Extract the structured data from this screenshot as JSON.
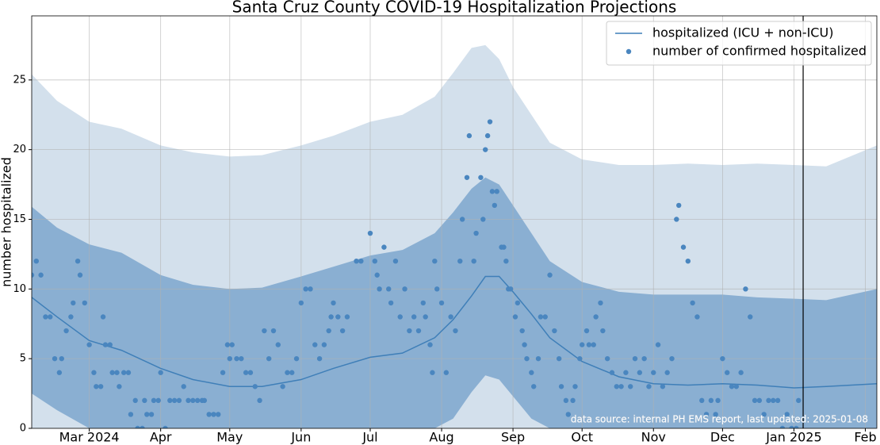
{
  "chart_data": {
    "type": "line",
    "title": "Santa Cruz County COVID-19 Hospitalization Projections",
    "ylabel": "number hospitalized",
    "annotation": "data source: internal PH EMS report, last updated: 2025-01-08",
    "xlim": [
      -25,
      342
    ],
    "ylim": [
      0,
      29.6
    ],
    "xticks": [
      {
        "value": 0,
        "label": "Mar 2024"
      },
      {
        "value": 31,
        "label": "Apr"
      },
      {
        "value": 61,
        "label": "May"
      },
      {
        "value": 92,
        "label": "Jun"
      },
      {
        "value": 122,
        "label": "Jul"
      },
      {
        "value": 153,
        "label": "Aug"
      },
      {
        "value": 184,
        "label": "Sep"
      },
      {
        "value": 214,
        "label": "Oct"
      },
      {
        "value": 245,
        "label": "Nov"
      },
      {
        "value": 275,
        "label": "Dec"
      },
      {
        "value": 306,
        "label": "Jan 2025"
      },
      {
        "value": 337,
        "label": "Feb"
      }
    ],
    "yticks": [
      0,
      5,
      10,
      15,
      20,
      25
    ],
    "grid": true,
    "legend": "upper right",
    "vline": 310,
    "bands": [
      {
        "color": "#d3e0ec",
        "x": [
          -25,
          -14,
          0,
          14,
          31,
          45,
          61,
          75,
          92,
          106,
          122,
          136,
          150,
          158,
          166,
          172,
          178,
          184,
          192,
          200,
          214,
          230,
          245,
          260,
          275,
          290,
          306,
          320,
          342
        ],
        "upper": [
          25.4,
          23.5,
          22.0,
          21.5,
          20.3,
          19.8,
          19.5,
          19.6,
          20.3,
          21.0,
          22.0,
          22.5,
          23.8,
          25.5,
          27.3,
          27.5,
          26.5,
          24.5,
          22.5,
          20.5,
          19.3,
          18.9,
          18.9,
          19.0,
          18.9,
          19.0,
          18.9,
          18.8,
          20.3
        ]
      },
      {
        "color": "#8aafd2",
        "x": [
          -25,
          -14,
          0,
          14,
          31,
          45,
          61,
          75,
          92,
          106,
          122,
          136,
          150,
          158,
          166,
          172,
          178,
          184,
          192,
          200,
          214,
          230,
          245,
          260,
          275,
          290,
          306,
          320,
          342
        ],
        "lower": [
          2.5,
          1.3,
          0,
          0,
          0,
          0,
          0,
          0,
          0,
          0,
          0,
          0,
          0,
          0.7,
          2.6,
          3.8,
          3.5,
          2.3,
          0.7,
          0,
          0,
          0,
          0,
          0,
          0,
          0,
          0,
          0,
          0
        ],
        "upper": [
          15.9,
          14.4,
          13.2,
          12.6,
          11.0,
          10.3,
          10.0,
          10.1,
          10.9,
          11.6,
          12.4,
          12.8,
          14.0,
          15.5,
          17.2,
          18.0,
          17.5,
          16.0,
          14.0,
          12.0,
          10.5,
          9.8,
          9.6,
          9.6,
          9.6,
          9.4,
          9.3,
          9.2,
          10.0
        ]
      }
    ],
    "series": [
      {
        "name": "hospitalized (ICU + non-ICU)",
        "color": "#3f7fb8",
        "type": "line",
        "x": [
          -25,
          -14,
          0,
          14,
          31,
          45,
          61,
          75,
          92,
          106,
          122,
          136,
          150,
          158,
          166,
          172,
          178,
          184,
          192,
          200,
          214,
          230,
          245,
          260,
          275,
          290,
          306,
          320,
          342
        ],
        "values": [
          9.4,
          8.0,
          6.3,
          5.6,
          4.3,
          3.5,
          3.0,
          3.0,
          3.5,
          4.3,
          5.1,
          5.4,
          6.5,
          7.8,
          9.5,
          10.9,
          10.9,
          9.8,
          8.2,
          6.5,
          4.8,
          3.7,
          3.2,
          3.1,
          3.2,
          3.1,
          2.9,
          3.0,
          3.2
        ]
      },
      {
        "name": "number of confirmed hospitalized",
        "color": "#4a86bf",
        "type": "scatter",
        "x": [
          -25,
          -23,
          -21,
          -19,
          -17,
          -15,
          -13,
          -12,
          -10,
          -8,
          -7,
          -5,
          -4,
          -2,
          0,
          2,
          3,
          5,
          6,
          7,
          9,
          10,
          12,
          13,
          15,
          17,
          18,
          20,
          21,
          23,
          24,
          25,
          27,
          28,
          30,
          31,
          33,
          35,
          37,
          39,
          41,
          43,
          45,
          47,
          49,
          50,
          52,
          54,
          56,
          58,
          60,
          61,
          62,
          64,
          66,
          68,
          70,
          72,
          74,
          76,
          78,
          80,
          82,
          84,
          86,
          88,
          90,
          92,
          94,
          96,
          98,
          100,
          102,
          104,
          105,
          106,
          108,
          110,
          112,
          116,
          118,
          122,
          124,
          125,
          126,
          128,
          130,
          131,
          133,
          135,
          137,
          139,
          141,
          143,
          145,
          146,
          148,
          149,
          150,
          151,
          153,
          155,
          157,
          159,
          161,
          162,
          164,
          165,
          167,
          168,
          170,
          171,
          172,
          173,
          174,
          175,
          176,
          177,
          179,
          180,
          181,
          182,
          183,
          185,
          186,
          188,
          189,
          190,
          192,
          193,
          195,
          196,
          198,
          200,
          202,
          204,
          205,
          207,
          208,
          210,
          211,
          213,
          214,
          216,
          217,
          219,
          220,
          222,
          223,
          225,
          227,
          229,
          231,
          233,
          235,
          237,
          239,
          241,
          243,
          245,
          247,
          249,
          251,
          253,
          255,
          256,
          258,
          260,
          262,
          264,
          266,
          268,
          270,
          272,
          273,
          275,
          277,
          279,
          281,
          283,
          285,
          287,
          289,
          291,
          293,
          295,
          297,
          299,
          301,
          303,
          305,
          307,
          308
        ],
        "values": [
          11,
          12,
          11,
          8,
          8,
          5,
          4,
          5,
          7,
          8,
          9,
          12,
          11,
          9,
          6,
          4,
          3,
          3,
          8,
          6,
          6,
          4,
          4,
          3,
          4,
          4,
          1,
          2,
          0,
          0,
          2,
          1,
          1,
          2,
          2,
          4,
          0,
          2,
          2,
          2,
          3,
          2,
          2,
          2,
          2,
          2,
          1,
          1,
          1,
          4,
          6,
          5,
          6,
          5,
          5,
          4,
          4,
          3,
          2,
          7,
          5,
          7,
          6,
          3,
          4,
          4,
          5,
          9,
          10,
          10,
          6,
          5,
          6,
          7,
          8,
          9,
          8,
          7,
          8,
          12,
          12,
          14,
          12,
          11,
          10,
          13,
          10,
          9,
          12,
          8,
          10,
          7,
          8,
          7,
          9,
          8,
          6,
          4,
          12,
          10,
          9,
          4,
          8,
          7,
          12,
          15,
          18,
          21,
          12,
          14,
          18,
          15,
          20,
          21,
          22,
          17,
          16,
          17,
          13,
          13,
          12,
          10,
          10,
          8,
          9,
          7,
          6,
          5,
          4,
          3,
          5,
          8,
          8,
          11,
          7,
          5,
          3,
          2,
          1,
          2,
          3,
          5,
          6,
          7,
          6,
          6,
          8,
          9,
          7,
          5,
          4,
          3,
          3,
          4,
          3,
          5,
          4,
          5,
          3,
          4,
          6,
          3,
          4,
          5,
          15,
          16,
          13,
          12,
          9,
          8,
          2,
          1,
          2,
          1,
          2,
          5,
          4,
          3,
          3,
          4,
          10,
          8,
          2,
          2,
          1,
          2,
          2,
          2,
          0,
          1,
          0,
          0,
          2
        ]
      }
    ]
  }
}
